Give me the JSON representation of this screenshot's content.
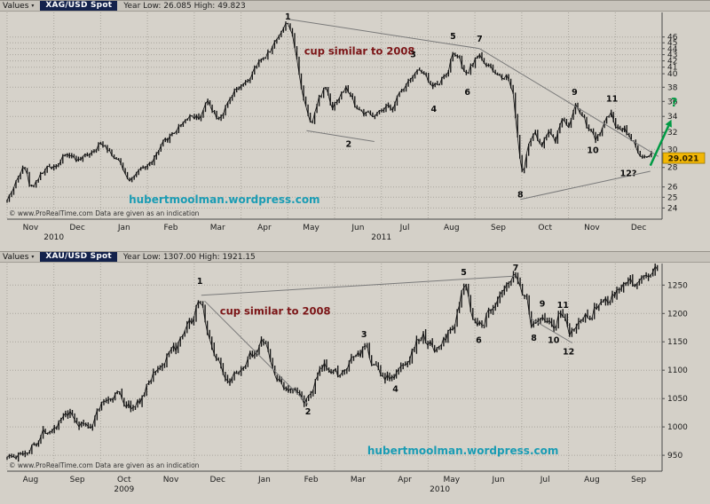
{
  "icons": {
    "chevron_down": "▾"
  },
  "colors": {
    "bg": "#d4d0c8",
    "plot_bg": "#d6d2ca",
    "grid": "#a9a59d",
    "candle": "#141414",
    "trendline": "#7a7a7a",
    "axis_line": "#4a4a4a",
    "maroon": "#7b1416",
    "teal": "#1a9cb4",
    "green": "#009a44",
    "badge_bg": "#f2b705",
    "badge_border": "#8a6d00"
  },
  "chart_data": [
    {
      "type": "candlestick",
      "instrument": "XAG/USD Spot",
      "header": {
        "values_label": "Values",
        "instrument": "XAG/USD Spot",
        "range_text": "Year Low: 26.085 High: 49.823"
      },
      "scale": "log",
      "price_min_visible": 23.0,
      "price_max_visible": 50.5,
      "y_ticks": [
        46,
        45,
        44,
        43,
        42,
        41,
        40,
        38,
        36,
        34,
        32,
        30,
        28,
        26,
        25,
        24
      ],
      "x_tick_months": [
        "Nov",
        "Dec",
        "Jan",
        "Feb",
        "Mar",
        "Apr",
        "May",
        "Jun",
        "Jul",
        "Aug",
        "Sep",
        "Oct",
        "Nov",
        "Dec"
      ],
      "year_labels": [
        {
          "label": "2010",
          "center_month": 1.0
        },
        {
          "label": "2011",
          "center_month": 8.0
        }
      ],
      "last_price": 29.021,
      "last_price_label": "29.021",
      "series_anchors": [
        [
          0,
          24.6
        ],
        [
          0.25,
          27.0
        ],
        [
          0.35,
          28.9
        ],
        [
          0.5,
          25.9
        ],
        [
          0.7,
          27.2
        ],
        [
          1.0,
          28.3
        ],
        [
          1.3,
          29.4
        ],
        [
          1.6,
          28.7
        ],
        [
          1.9,
          30.5
        ],
        [
          2.1,
          30.8
        ],
        [
          2.4,
          28.4
        ],
        [
          2.6,
          27.0
        ],
        [
          2.85,
          27.4
        ],
        [
          3.1,
          28.6
        ],
        [
          3.5,
          31.6
        ],
        [
          3.9,
          34.3
        ],
        [
          4.1,
          33.9
        ],
        [
          4.3,
          36.1
        ],
        [
          4.5,
          34.0
        ],
        [
          4.7,
          35.3
        ],
        [
          4.9,
          37.3
        ],
        [
          5.1,
          38.3
        ],
        [
          5.3,
          40.6
        ],
        [
          5.5,
          42.6
        ],
        [
          5.7,
          44.6
        ],
        [
          5.85,
          47.2
        ],
        [
          6.02,
          48.9
        ],
        [
          6.12,
          45.2
        ],
        [
          6.22,
          41.0
        ],
        [
          6.35,
          36.2
        ],
        [
          6.5,
          33.4
        ],
        [
          6.65,
          36.0
        ],
        [
          6.8,
          38.2
        ],
        [
          6.95,
          35.4
        ],
        [
          7.1,
          36.8
        ],
        [
          7.25,
          37.9
        ],
        [
          7.45,
          35.4
        ],
        [
          7.65,
          34.3
        ],
        [
          7.85,
          33.7
        ],
        [
          8.05,
          34.6
        ],
        [
          8.25,
          35.3
        ],
        [
          8.45,
          37.7
        ],
        [
          8.65,
          40.1
        ],
        [
          8.8,
          40.7
        ],
        [
          8.95,
          39.3
        ],
        [
          9.1,
          37.9
        ],
        [
          9.25,
          39.0
        ],
        [
          9.4,
          40.3
        ],
        [
          9.55,
          43.6
        ],
        [
          9.68,
          41.9
        ],
        [
          9.8,
          39.2
        ],
        [
          9.95,
          41.4
        ],
        [
          10.1,
          43.1
        ],
        [
          10.25,
          41.4
        ],
        [
          10.4,
          40.0
        ],
        [
          10.55,
          39.6
        ],
        [
          10.7,
          39.9
        ],
        [
          10.82,
          37.2
        ],
        [
          10.92,
          30.8
        ],
        [
          11.02,
          27.0
        ],
        [
          11.12,
          29.9
        ],
        [
          11.27,
          31.9
        ],
        [
          11.42,
          30.2
        ],
        [
          11.57,
          32.3
        ],
        [
          11.72,
          31.2
        ],
        [
          11.87,
          33.9
        ],
        [
          12.02,
          33.1
        ],
        [
          12.15,
          35.3
        ],
        [
          12.3,
          34.0
        ],
        [
          12.45,
          32.0
        ],
        [
          12.6,
          31.2
        ],
        [
          12.75,
          32.9
        ],
        [
          12.9,
          34.3
        ],
        [
          13.05,
          32.5
        ],
        [
          13.2,
          32.8
        ],
        [
          13.35,
          31.2
        ],
        [
          13.5,
          29.4
        ],
        [
          13.65,
          28.7
        ],
        [
          13.77,
          29.02
        ]
      ],
      "wave_annotations": [
        {
          "label": "1",
          "month": 6.0,
          "price": 49.9
        },
        {
          "label": "2",
          "month": 7.3,
          "price": 30.3
        },
        {
          "label": "3",
          "month": 8.68,
          "price": 42.6
        },
        {
          "label": "4",
          "month": 9.12,
          "price": 34.6
        },
        {
          "label": "5",
          "month": 9.53,
          "price": 45.6
        },
        {
          "label": "6",
          "month": 9.84,
          "price": 36.9
        },
        {
          "label": "7",
          "month": 10.1,
          "price": 45.2
        },
        {
          "label": "8",
          "month": 10.97,
          "price": 25.0
        },
        {
          "label": "9",
          "month": 12.13,
          "price": 36.9
        },
        {
          "label": "10",
          "month": 12.52,
          "price": 29.6
        },
        {
          "label": "11",
          "month": 12.93,
          "price": 36.0
        },
        {
          "label": "12?",
          "month": 13.28,
          "price": 27.1
        }
      ],
      "trendlines": [
        [
          [
            6.02,
            49.2
          ],
          [
            10.1,
            44.0
          ]
        ],
        [
          [
            10.1,
            44.0
          ],
          [
            13.92,
            29.2
          ]
        ],
        [
          [
            10.97,
            24.8
          ],
          [
            13.75,
            27.6
          ]
        ],
        [
          [
            6.4,
            32.2
          ],
          [
            7.85,
            30.9
          ]
        ]
      ],
      "note": {
        "text": "cup similar to 2008",
        "month": 6.35,
        "price": 43.0
      },
      "arrow": {
        "from": [
          13.75,
          28.2
        ],
        "to": [
          14.2,
          33.6
        ],
        "label": "?",
        "label_pos": [
          14.26,
          35.3
        ]
      },
      "watermark": {
        "text": "hubertmoolman.wordpress.com",
        "month": 2.6,
        "price": 24.45
      },
      "copyright": "© www.ProRealTime.com Data are given as an indication",
      "render": {
        "bars": 290,
        "seed": 42,
        "amp": 0.014,
        "wick": 0.009
      }
    },
    {
      "type": "candlestick",
      "instrument": "XAU/USD Spot",
      "header": {
        "values_label": "Values",
        "instrument": "XAU/USD Spot",
        "range_text": "Year Low: 1307.00 High: 1921.15"
      },
      "scale": "linear",
      "price_min_visible": 922,
      "price_max_visible": 1288,
      "y_ticks": [
        1250,
        1200,
        1150,
        1100,
        1050,
        1000,
        950
      ],
      "x_tick_months": [
        "Aug",
        "Sep",
        "Oct",
        "Nov",
        "Dec",
        "Jan",
        "Feb",
        "Mar",
        "Apr",
        "May",
        "Jun",
        "Jul",
        "Aug",
        "Sep"
      ],
      "year_labels": [
        {
          "label": "2009",
          "center_month": 2.5
        },
        {
          "label": "2010",
          "center_month": 9.25
        }
      ],
      "last_price": null,
      "last_price_label": "",
      "series_anchors": [
        [
          0,
          952
        ],
        [
          0.2,
          944
        ],
        [
          0.4,
          958
        ],
        [
          0.6,
          973
        ],
        [
          0.8,
          994
        ],
        [
          1.0,
          1004
        ],
        [
          1.2,
          1014
        ],
        [
          1.35,
          1018
        ],
        [
          1.55,
          1006
        ],
        [
          1.75,
          999
        ],
        [
          1.95,
          1032
        ],
        [
          2.15,
          1050
        ],
        [
          2.35,
          1062
        ],
        [
          2.55,
          1040
        ],
        [
          2.75,
          1032
        ],
        [
          2.95,
          1062
        ],
        [
          3.15,
          1100
        ],
        [
          3.35,
          1112
        ],
        [
          3.55,
          1128
        ],
        [
          3.75,
          1150
        ],
        [
          3.95,
          1182
        ],
        [
          4.08,
          1210
        ],
        [
          4.16,
          1226
        ],
        [
          4.3,
          1158
        ],
        [
          4.45,
          1126
        ],
        [
          4.6,
          1098
        ],
        [
          4.75,
          1088
        ],
        [
          4.9,
          1106
        ],
        [
          5.05,
          1094
        ],
        [
          5.2,
          1122
        ],
        [
          5.35,
          1140
        ],
        [
          5.5,
          1152
        ],
        [
          5.65,
          1106
        ],
        [
          5.8,
          1080
        ],
        [
          6.0,
          1066
        ],
        [
          6.15,
          1056
        ],
        [
          6.3,
          1050
        ],
        [
          6.45,
          1046
        ],
        [
          6.6,
          1080
        ],
        [
          6.75,
          1100
        ],
        [
          6.9,
          1110
        ],
        [
          7.05,
          1096
        ],
        [
          7.2,
          1090
        ],
        [
          7.35,
          1108
        ],
        [
          7.5,
          1126
        ],
        [
          7.62,
          1136
        ],
        [
          7.8,
          1116
        ],
        [
          7.95,
          1100
        ],
        [
          8.1,
          1090
        ],
        [
          8.28,
          1086
        ],
        [
          8.45,
          1106
        ],
        [
          8.6,
          1128
        ],
        [
          8.75,
          1150
        ],
        [
          8.88,
          1160
        ],
        [
          9.0,
          1152
        ],
        [
          9.15,
          1134
        ],
        [
          9.3,
          1146
        ],
        [
          9.45,
          1168
        ],
        [
          9.6,
          1190
        ],
        [
          9.74,
          1236
        ],
        [
          9.84,
          1246
        ],
        [
          9.95,
          1196
        ],
        [
          10.06,
          1176
        ],
        [
          10.2,
          1192
        ],
        [
          10.35,
          1212
        ],
        [
          10.5,
          1222
        ],
        [
          10.65,
          1234
        ],
        [
          10.78,
          1248
        ],
        [
          10.88,
          1262
        ],
        [
          11.0,
          1240
        ],
        [
          11.1,
          1230
        ],
        [
          11.22,
          1178
        ],
        [
          11.34,
          1186
        ],
        [
          11.45,
          1204
        ],
        [
          11.56,
          1194
        ],
        [
          11.68,
          1170
        ],
        [
          11.8,
          1196
        ],
        [
          11.9,
          1200
        ],
        [
          12.0,
          1152
        ],
        [
          12.12,
          1170
        ],
        [
          12.25,
          1186
        ],
        [
          12.4,
          1198
        ],
        [
          12.55,
          1210
        ],
        [
          12.7,
          1222
        ],
        [
          12.85,
          1216
        ],
        [
          13.0,
          1230
        ],
        [
          13.15,
          1244
        ],
        [
          13.3,
          1250
        ],
        [
          13.5,
          1256
        ],
        [
          13.7,
          1266
        ],
        [
          13.9,
          1277
        ]
      ],
      "wave_annotations": [
        {
          "label": "1",
          "month": 4.12,
          "price": 1252
        },
        {
          "label": "2",
          "month": 6.43,
          "price": 1022
        },
        {
          "label": "3",
          "month": 7.63,
          "price": 1158
        },
        {
          "label": "4",
          "month": 8.3,
          "price": 1062
        },
        {
          "label": "5",
          "month": 9.76,
          "price": 1268
        },
        {
          "label": "6",
          "month": 10.08,
          "price": 1148
        },
        {
          "label": "7",
          "month": 10.87,
          "price": 1278
        },
        {
          "label": "8",
          "month": 11.26,
          "price": 1152
        },
        {
          "label": "9",
          "month": 11.44,
          "price": 1212
        },
        {
          "label": "10",
          "month": 11.68,
          "price": 1148
        },
        {
          "label": "11",
          "month": 11.88,
          "price": 1210
        },
        {
          "label": "12",
          "month": 12.0,
          "price": 1128
        }
      ],
      "trendlines": [
        [
          [
            4.15,
            1232
          ],
          [
            10.86,
            1266
          ]
        ],
        [
          [
            4.22,
            1222
          ],
          [
            6.43,
            1040
          ]
        ],
        [
          [
            11.18,
            1192
          ],
          [
            12.08,
            1148
          ]
        ]
      ],
      "note": {
        "text": "cup similar to 2008",
        "month": 4.55,
        "price": 1198
      },
      "arrow": null,
      "watermark": {
        "text": "hubertmoolman.wordpress.com",
        "month": 7.7,
        "price": 952
      },
      "copyright": "© www.ProRealTime.com Data are given as an indication",
      "render": {
        "bars": 290,
        "seed": 1337,
        "amp": 0.009,
        "wick": 0.006
      }
    }
  ]
}
